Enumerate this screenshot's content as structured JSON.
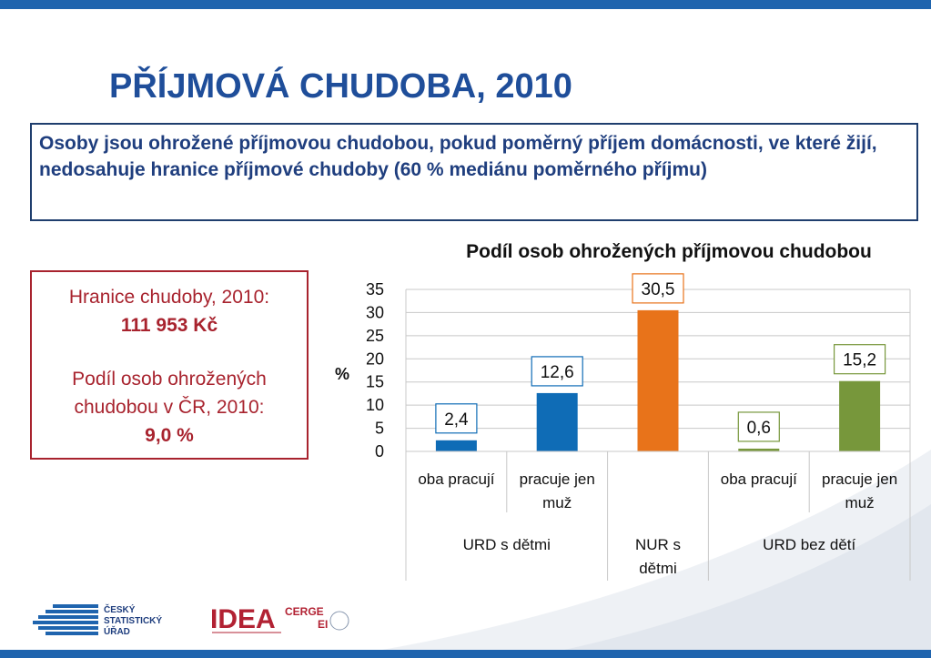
{
  "title": "PŘÍJMOVÁ CHUDOBA, 2010",
  "definition": "Osoby jsou ohrožené příjmovou chudobou, pokud poměrný příjem domácnosti, ve které žijí, nedosahuje hranice příjmové chudoby (60 % mediánu poměrného příjmu)",
  "info": {
    "line1": "Hranice chudoby, 2010:",
    "value1": "111 953 Kč",
    "line2a": "Podíl osob ohrožených",
    "line2b": "chudobou v ČR, 2010:",
    "value2": "9,0 %"
  },
  "logos": {
    "czso_line1": "ČESKÝ",
    "czso_line2": "STATISTICKÝ",
    "czso_line3": "ÚŘAD",
    "idea_text": "IDEA",
    "cerge_text": "CERGE",
    "ei_text": "EI"
  },
  "colors": {
    "title": "#1f4e9a",
    "accent_blue": "#1f64ae",
    "info_red": "#a8232e",
    "bar_blue": "#0f6cb6",
    "bar_orange": "#e8731a",
    "bar_green": "#77973b"
  },
  "chart_data": {
    "type": "bar",
    "title": "Podíl osob ohrožených příjmovou chudobou",
    "ylabel": "%",
    "ylim": [
      0,
      35
    ],
    "yticks": [
      "0",
      "5",
      "10",
      "15",
      "20",
      "25",
      "30",
      "35"
    ],
    "grid": true,
    "categories": [
      "oba pracují",
      "pracuje jen muž",
      "",
      "oba pracují",
      "pracuje jen muž"
    ],
    "groups": [
      "URD s dětmi",
      "NUR s dětmi",
      "URD bez dětí"
    ],
    "values": [
      2.4,
      12.6,
      30.5,
      0.6,
      15.2
    ],
    "value_labels": [
      "2,4",
      "12,6",
      "30,5",
      "0,6",
      "15,2"
    ],
    "bar_colors": [
      "#0f6cb6",
      "#0f6cb6",
      "#e8731a",
      "#77973b",
      "#77973b"
    ]
  }
}
